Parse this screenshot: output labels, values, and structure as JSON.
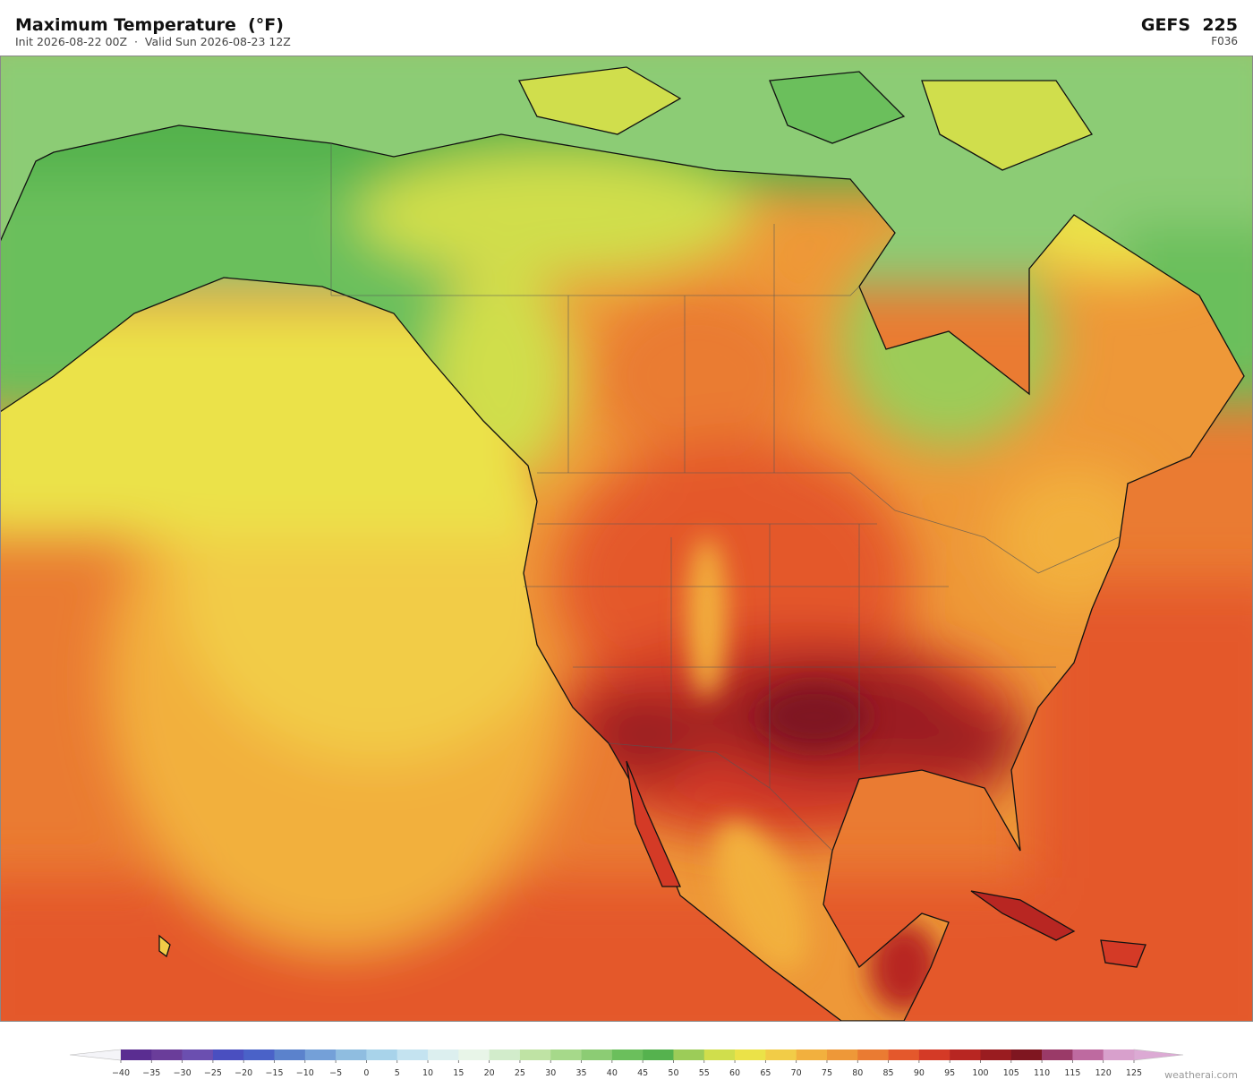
{
  "header": {
    "title": "Maximum Temperature  (°F)",
    "subtitle": "Init 2026-08-22 00Z  ·  Valid Sun 2026-08-23 12Z",
    "model": "GEFS  225",
    "forecast_hour": "F036"
  },
  "colorbar": {
    "ticks": [
      {
        "value": -40,
        "label": "−40"
      },
      {
        "value": -35,
        "label": "−35"
      },
      {
        "value": -30,
        "label": "−30"
      },
      {
        "value": -25,
        "label": "−25"
      },
      {
        "value": -20,
        "label": "−20"
      },
      {
        "value": -15,
        "label": "−15"
      },
      {
        "value": -10,
        "label": "−10"
      },
      {
        "value": -5,
        "label": "−5"
      },
      0,
      5,
      10,
      15,
      20,
      25,
      30,
      35,
      40,
      45,
      50,
      55,
      60,
      65,
      70,
      75,
      80,
      85,
      90,
      95,
      100,
      105,
      110,
      115,
      120,
      125
    ],
    "colors": [
      "#5a2d91",
      "#6a3d9a",
      "#6b4fb0",
      "#4a4fc0",
      "#4a62c8",
      "#5b82cc",
      "#74a0d8",
      "#8fbde0",
      "#a8d3ea",
      "#c4e3f0",
      "#dcefef",
      "#e8f5e8",
      "#d2eccb",
      "#bfe3a4",
      "#a6d98a",
      "#8ccc74",
      "#6bbf5c",
      "#55b24e",
      "#9ccc58",
      "#d0de4c",
      "#ebe248",
      "#f2cc47",
      "#f2b03e",
      "#ee9838",
      "#ea7b32",
      "#e4582c",
      "#d43a26",
      "#b82622",
      "#9a1c20",
      "#7f1620",
      "#9a3a68",
      "#be6aa0",
      "#d8a0cc"
    ],
    "under_color": "#f4f4f8",
    "over_color": "#dcaad4"
  },
  "footer": {
    "watermark": "weatherai.com"
  }
}
